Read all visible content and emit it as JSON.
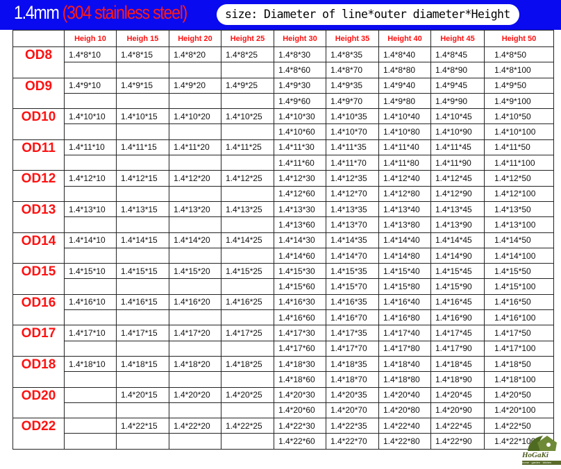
{
  "header": {
    "title_main": "1.4mm",
    "title_material": "(304 stainless steel)",
    "size_note": "size: Diameter of line*outer diameter*Height"
  },
  "colors": {
    "header_bg": "#0a0af0",
    "accent_red": "#ff1010"
  },
  "table": {
    "columns": [
      "",
      "Heigh 10",
      "Heigh 15",
      "Height 20",
      "Height 25",
      "Height 30",
      "Height 35",
      "Height 40",
      "Height 45",
      "Height 50"
    ],
    "groups": [
      {
        "od": "OD8",
        "row1": [
          "1.4*8*10",
          "1.4*8*15",
          "1.4*8*20",
          "1.4*8*25",
          "1.4*8*30",
          "1.4*8*35",
          "1.4*8*40",
          "1.4*8*45",
          "1.4*8*50"
        ],
        "row2": [
          "",
          "",
          "",
          "",
          "1.4*8*60",
          "1.4*8*70",
          "1.4*8*80",
          "1.4*8*90",
          "1.4*8*100"
        ]
      },
      {
        "od": "OD9",
        "row1": [
          "1.4*9*10",
          "1.4*9*15",
          "1.4*9*20",
          "1.4*9*25",
          "1.4*9*30",
          "1.4*9*35",
          "1.4*9*40",
          "1.4*9*45",
          "1.4*9*50"
        ],
        "row2": [
          "",
          "",
          "",
          "",
          "1.4*9*60",
          "1.4*9*70",
          "1.4*9*80",
          "1.4*9*90",
          "1.4*9*100"
        ]
      },
      {
        "od": "OD10",
        "row1": [
          "1.4*10*10",
          "1.4*10*15",
          "1.4*10*20",
          "1.4*10*25",
          "1.4*10*30",
          "1.4*10*35",
          "1.4*10*40",
          "1.4*10*45",
          "1.4*10*50"
        ],
        "row2": [
          "",
          "",
          "",
          "",
          "1.4*10*60",
          "1.4*10*70",
          "1.4*10*80",
          "1.4*10*90",
          "1.4*10*100"
        ]
      },
      {
        "od": "OD11",
        "row1": [
          "1.4*11*10",
          "1.4*11*15",
          "1.4*11*20",
          "1.4*11*25",
          "1.4*11*30",
          "1.4*11*35",
          "1.4*11*40",
          "1.4*11*45",
          "1.4*11*50"
        ],
        "row2": [
          "",
          "",
          "",
          "",
          "1.4*11*60",
          "1.4*11*70",
          "1.4*11*80",
          "1.4*11*90",
          "1.4*11*100"
        ]
      },
      {
        "od": "OD12",
        "row1": [
          "1.4*12*10",
          "1.4*12*15",
          "1.4*12*20",
          "1.4*12*25",
          "1.4*12*30",
          "1.4*12*35",
          "1.4*12*40",
          "1.4*12*45",
          "1.4*12*50"
        ],
        "row2": [
          "",
          "",
          "",
          "",
          "1.4*12*60",
          "1.4*12*70",
          "1.4*12*80",
          "1.4*12*90",
          "1.4*12*100"
        ]
      },
      {
        "od": "OD13",
        "row1": [
          "1.4*13*10",
          "1.4*13*15",
          "1.4*13*20",
          "1.4*13*25",
          "1.4*13*30",
          "1.4*13*35",
          "1.4*13*40",
          "1.4*13*45",
          "1.4*13*50"
        ],
        "row2": [
          "",
          "",
          "",
          "",
          "1.4*13*60",
          "1.4*13*70",
          "1.4*13*80",
          "1.4*13*90",
          "1.4*13*100"
        ]
      },
      {
        "od": "OD14",
        "row1": [
          "1.4*14*10",
          "1.4*14*15",
          "1.4*14*20",
          "1.4*14*25",
          "1.4*14*30",
          "1.4*14*35",
          "1.4*14*40",
          "1.4*14*45",
          "1.4*14*50"
        ],
        "row2": [
          "",
          "",
          "",
          "",
          "1.4*14*60",
          "1.4*14*70",
          "1.4*14*80",
          "1.4*14*90",
          "1.4*14*100"
        ]
      },
      {
        "od": "OD15",
        "row1": [
          "1.4*15*10",
          "1.4*15*15",
          "1.4*15*20",
          "1.4*15*25",
          "1.4*15*30",
          "1.4*15*35",
          "1.4*15*40",
          "1.4*15*45",
          "1.4*15*50"
        ],
        "row2": [
          "",
          "",
          "",
          "",
          "1.4*15*60",
          "1.4*15*70",
          "1.4*15*80",
          "1.4*15*90",
          "1.4*15*100"
        ]
      },
      {
        "od": "OD16",
        "row1": [
          "1.4*16*10",
          "1.4*16*15",
          "1.4*16*20",
          "1.4*16*25",
          "1.4*16*30",
          "1.4*16*35",
          "1.4*16*40",
          "1.4*16*45",
          "1.4*16*50"
        ],
        "row2": [
          "",
          "",
          "",
          "",
          "1.4*16*60",
          "1.4*16*70",
          "1.4*16*80",
          "1.4*16*90",
          "1.4*16*100"
        ]
      },
      {
        "od": "OD17",
        "row1": [
          "1.4*17*10",
          "1.4*17*15",
          "1.4*17*20",
          "1.4*17*25",
          "1.4*17*30",
          "1.4*17*35",
          "1.4*17*40",
          "1.4*17*45",
          "1.4*17*50"
        ],
        "row2": [
          "",
          "",
          "",
          "",
          "1.4*17*60",
          "1.4*17*70",
          "1.4*17*80",
          "1.4*17*90",
          "1.4*17*100"
        ]
      },
      {
        "od": "OD18",
        "row1": [
          "1.4*18*10",
          "1.4*18*15",
          "1.4*18*20",
          "1.4*18*25",
          "1.4*18*30",
          "1.4*18*35",
          "1.4*18*40",
          "1.4*18*45",
          "1.4*18*50"
        ],
        "row2": [
          "",
          "",
          "",
          "",
          "1.4*18*60",
          "1.4*18*70",
          "1.4*18*80",
          "1.4*18*90",
          "1.4*18*100"
        ]
      },
      {
        "od": "OD20",
        "row1": [
          "",
          "1.4*20*15",
          "1.4*20*20",
          "1.4*20*25",
          "1.4*20*30",
          "1.4*20*35",
          "1.4*20*40",
          "1.4*20*45",
          "1.4*20*50"
        ],
        "row2": [
          "",
          "",
          "",
          "",
          "1.4*20*60",
          "1.4*20*70",
          "1.4*20*80",
          "1.4*20*90",
          "1.4*20*100"
        ]
      },
      {
        "od": "OD22",
        "row1": [
          "",
          "1.4*22*15",
          "1.4*22*20",
          "1.4*22*25",
          "1.4*22*30",
          "1.4*22*35",
          "1.4*22*40",
          "1.4*22*45",
          "1.4*22*50"
        ],
        "row2": [
          "",
          "",
          "",
          "",
          "1.4*22*60",
          "1.4*22*70",
          "1.4*22*80",
          "1.4*22*90",
          "1.4*22*100"
        ]
      }
    ]
  },
  "logo": {
    "brand": "HoGaKi",
    "tagline": "home · garden · kitchen"
  }
}
